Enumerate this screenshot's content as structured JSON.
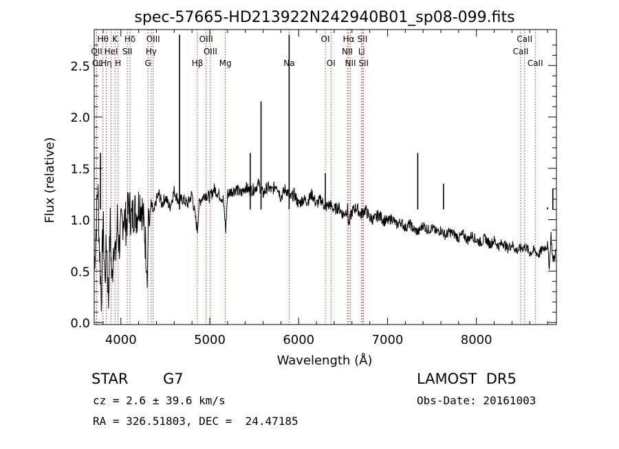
{
  "title": "spec-57665-HD213922N242940B01_sp08-099.fits",
  "footer": {
    "object_class": "STAR",
    "subclass": "G7",
    "survey": "LAMOST  DR5",
    "cz": "cz = 2.6 ± 39.6 km/s",
    "obs_date": "Obs-Date: 20161003",
    "coords": "RA = 326.51803, DEC =  24.47185"
  },
  "colors": {
    "line_marker": "#b22222",
    "spectrum": "#000000",
    "axis": "#000000"
  },
  "chart_data": {
    "type": "line",
    "title": "spec-57665-HD213922N242940B01_sp08-099.fits",
    "xlabel": "Wavelength (Å)",
    "ylabel": "Flux (relative)",
    "xlim": [
      3700,
      8900
    ],
    "ylim": [
      -0.02,
      2.85
    ],
    "grid": false,
    "x_ticks": [
      4000,
      5000,
      6000,
      7000,
      8000
    ],
    "x_tick_labels": [
      "4000",
      "5000",
      "6000",
      "7000",
      "8000"
    ],
    "y_ticks": [
      0.0,
      0.5,
      1.0,
      1.5,
      2.0,
      2.5
    ],
    "y_tick_labels": [
      "0.0",
      "0.5",
      "1.0",
      "1.5",
      "2.0",
      "2.5"
    ],
    "series": [
      {
        "x": [
          3700,
          3720,
          3740,
          3760,
          3780,
          3800,
          3820,
          3840,
          3860,
          3880,
          3900,
          3920,
          3940,
          3960,
          3980,
          4000,
          4030,
          4060,
          4090,
          4120,
          4150,
          4180,
          4210,
          4240,
          4270,
          4300,
          4310,
          4320,
          4340,
          4370,
          4400,
          4430,
          4460,
          4500,
          4550,
          4600,
          4650,
          4700,
          4750,
          4800,
          4850,
          4860,
          4880,
          4900,
          4950,
          5000,
          5050,
          5100,
          5150,
          5180,
          5200,
          5250,
          5300,
          5350,
          5400,
          5450,
          5500,
          5550,
          5600,
          5650,
          5700,
          5750,
          5800,
          5850,
          5890,
          5900,
          5950,
          6000,
          6050,
          6100,
          6150,
          6200,
          6250,
          6300,
          6350,
          6400,
          6450,
          6500,
          6550,
          6563,
          6600,
          6650,
          6700,
          6750,
          6800,
          6850,
          6900,
          6950,
          7000,
          7050,
          7100,
          7150,
          7200,
          7250,
          7300,
          7350,
          7400,
          7450,
          7500,
          7550,
          7600,
          7650,
          7700,
          7750,
          7800,
          7850,
          7900,
          7950,
          8000,
          8050,
          8100,
          8150,
          8200,
          8250,
          8300,
          8350,
          8400,
          8450,
          8500,
          8550,
          8600,
          8650,
          8700,
          8750,
          8800,
          8820,
          8840,
          8860,
          8880,
          8900
        ],
        "values": [
          0.55,
          0.9,
          1.35,
          0.7,
          0.25,
          1.0,
          0.4,
          0.8,
          0.2,
          0.95,
          0.35,
          0.85,
          0.6,
          1.0,
          0.75,
          0.9,
          1.05,
          0.95,
          1.15,
          1.0,
          1.1,
          1.05,
          1.2,
          1.1,
          0.85,
          0.5,
          1.1,
          0.95,
          1.15,
          1.05,
          1.2,
          1.25,
          1.15,
          1.22,
          1.12,
          1.28,
          1.18,
          1.2,
          1.15,
          1.25,
          0.95,
          0.9,
          1.15,
          1.2,
          1.25,
          1.22,
          1.3,
          1.25,
          1.2,
          0.9,
          1.25,
          1.28,
          1.3,
          1.25,
          1.32,
          1.28,
          1.3,
          1.35,
          1.25,
          1.32,
          1.28,
          1.35,
          1.22,
          1.3,
          1.25,
          1.2,
          1.25,
          1.15,
          1.2,
          1.18,
          1.25,
          1.15,
          1.2,
          1.12,
          1.15,
          1.1,
          1.12,
          1.05,
          1.1,
          0.95,
          1.08,
          1.12,
          1.05,
          1.1,
          1.02,
          1.0,
          1.05,
          1.0,
          0.98,
          1.02,
          0.95,
          0.98,
          0.92,
          0.96,
          0.9,
          0.88,
          0.95,
          0.9,
          0.92,
          0.88,
          0.9,
          0.85,
          0.88,
          0.86,
          0.82,
          0.86,
          0.8,
          0.85,
          0.8,
          0.78,
          0.82,
          0.76,
          0.8,
          0.74,
          0.78,
          0.72,
          0.76,
          0.7,
          0.72,
          0.74,
          0.68,
          0.7,
          0.66,
          0.72,
          0.75,
          0.55,
          0.85,
          0.6,
          0.65,
          0.7
        ],
        "spikes": [
          {
            "x": 3770,
            "y": 1.65
          },
          {
            "x": 4660,
            "y": 2.8
          },
          {
            "x": 5455,
            "y": 1.65
          },
          {
            "x": 5577,
            "y": 2.15
          },
          {
            "x": 5893,
            "y": 2.8
          },
          {
            "x": 6300,
            "y": 1.45
          },
          {
            "x": 7340,
            "y": 1.65
          },
          {
            "x": 7630,
            "y": 1.35
          },
          {
            "x": 8800,
            "y": 1.12
          },
          {
            "x": 8860,
            "y": 1.3
          }
        ]
      }
    ],
    "line_markers": [
      {
        "label": "Hθ",
        "wavelength": 3798,
        "row": 0
      },
      {
        "label": "K",
        "wavelength": 3934,
        "row": 0
      },
      {
        "label": "Hδ",
        "wavelength": 4102,
        "row": 0
      },
      {
        "label": "OIII",
        "wavelength": 4363,
        "row": 0
      },
      {
        "label": "OIII",
        "wavelength": 4959,
        "row": 0
      },
      {
        "label": "OI",
        "wavelength": 6300,
        "row": 0
      },
      {
        "label": "Hα",
        "wavelength": 6563,
        "row": 0
      },
      {
        "label": "SII",
        "wavelength": 6717,
        "row": 0
      },
      {
        "label": "CaII",
        "wavelength": 8542,
        "row": 0
      },
      {
        "label": "OII",
        "wavelength": 3727,
        "row": 1
      },
      {
        "label": "HeI",
        "wavelength": 3889,
        "row": 1
      },
      {
        "label": "SII",
        "wavelength": 4072,
        "row": 1
      },
      {
        "label": "Hγ",
        "wavelength": 4341,
        "row": 1
      },
      {
        "label": "OIII",
        "wavelength": 5007,
        "row": 1
      },
      {
        "label": "NII",
        "wavelength": 6548,
        "row": 1
      },
      {
        "label": "Li",
        "wavelength": 6708,
        "row": 1
      },
      {
        "label": "CaII",
        "wavelength": 8498,
        "row": 1
      },
      {
        "label": "OI",
        "wavelength": 3727,
        "row": 2
      },
      {
        "label": "Hη",
        "wavelength": 3835,
        "row": 2
      },
      {
        "label": "H",
        "wavelength": 3968,
        "row": 2
      },
      {
        "label": "G",
        "wavelength": 4305,
        "row": 2
      },
      {
        "label": "Hβ",
        "wavelength": 4861,
        "row": 2
      },
      {
        "label": "Mg",
        "wavelength": 5175,
        "row": 2
      },
      {
        "label": "Na",
        "wavelength": 5893,
        "row": 2
      },
      {
        "label": "OI",
        "wavelength": 6364,
        "row": 2
      },
      {
        "label": "NII",
        "wavelength": 6583,
        "row": 2
      },
      {
        "label": "SII",
        "wavelength": 6731,
        "row": 2
      },
      {
        "label": "CaII",
        "wavelength": 8662,
        "row": 2
      }
    ]
  }
}
